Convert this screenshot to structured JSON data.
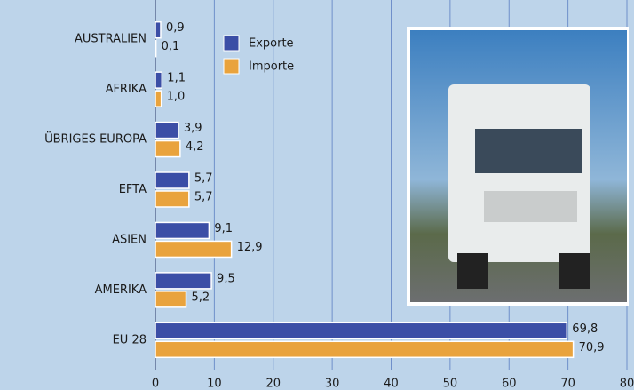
{
  "chart_data": {
    "type": "hbar",
    "categories": [
      "AUSTRALIEN",
      "AFRIKA",
      "ÜBRIGES EUROPA",
      "EFTA",
      "ASIEN",
      "AMERIKA",
      "EU 28"
    ],
    "series": [
      {
        "name": "Exporte",
        "color": "#3b4ea6",
        "values": [
          0.9,
          1.1,
          3.9,
          5.7,
          9.1,
          9.5,
          69.8
        ],
        "value_labels": [
          "0,9",
          "1,1",
          "3,9",
          "5,7",
          "9,1",
          "9,5",
          "69,8"
        ]
      },
      {
        "name": "Importe",
        "color": "#e9a33d",
        "values": [
          0.1,
          1.0,
          4.2,
          5.7,
          12.9,
          5.2,
          70.9
        ],
        "value_labels": [
          "0,1",
          "1,0",
          "4,2",
          "5,7",
          "12,9",
          "5,2",
          "70,9"
        ]
      }
    ],
    "xlim": [
      0,
      80
    ],
    "xticks": [
      0,
      10,
      20,
      30,
      40,
      50,
      60,
      70,
      80
    ],
    "grid": true,
    "legend": "top-left"
  }
}
